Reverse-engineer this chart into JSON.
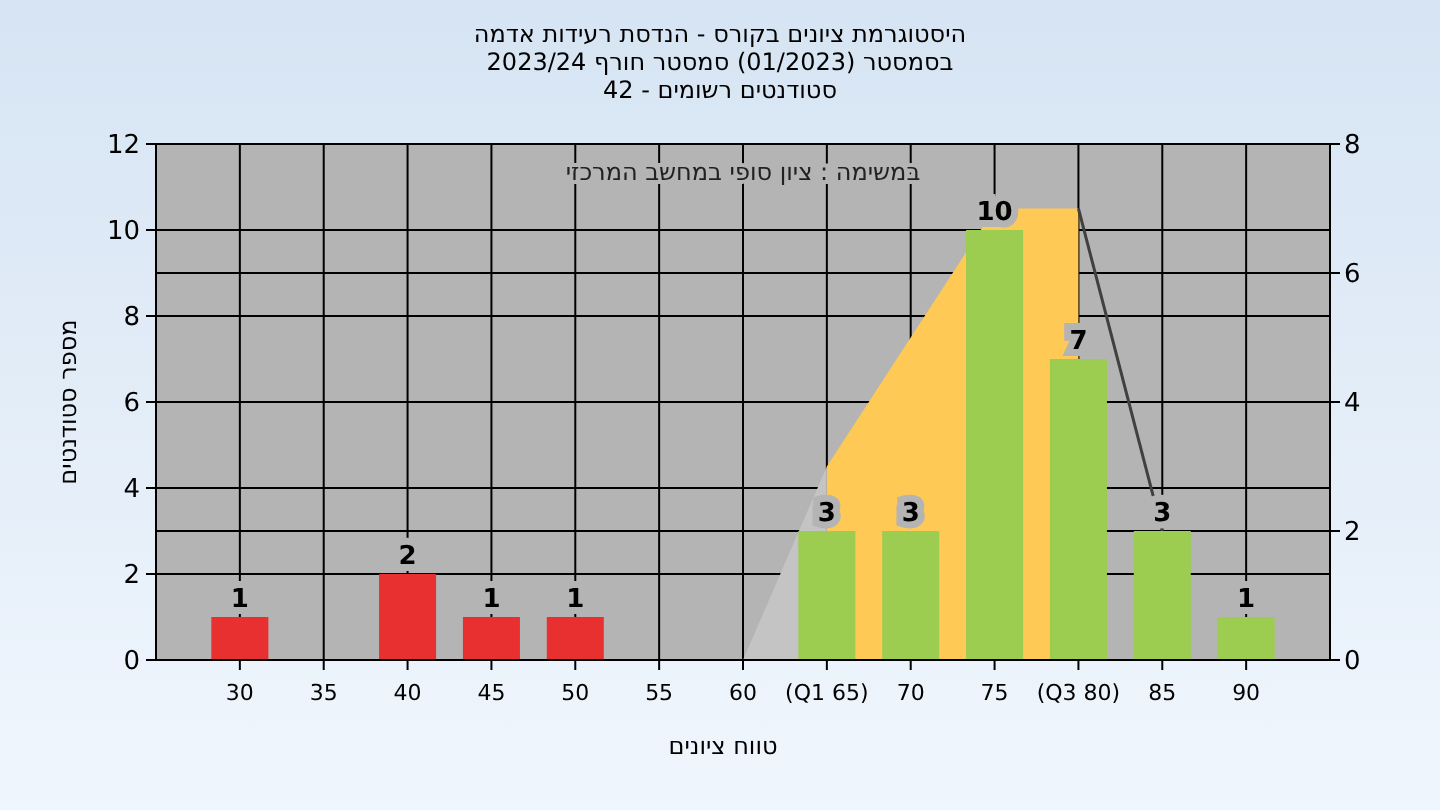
{
  "chart_data": {
    "type": "bar",
    "title": "היסטוגרמת ציונים בקורס - הנדסת רעידות אדמה",
    "subtitle": "בסמסטר  (01/2023)  סמסטר חורף 2023/24\nסטודנטים רשומים - 42",
    "xlabel": "טווח ציונים",
    "ylabel": "מספר סטודנטים",
    "annotations": [
      "במשימה : ציון סופי במחשב המרכזי"
    ],
    "x": [
      30,
      35,
      40,
      45,
      50,
      55,
      60,
      65,
      70,
      75,
      80,
      85,
      90
    ],
    "series": [
      {
        "values": [
          1,
          0,
          2,
          1,
          1,
          0,
          0,
          3,
          3,
          10,
          7,
          3,
          1
        ],
        "colors": [
          "#e83030",
          "#e83030",
          "#e83030",
          "#e83030",
          "#e83030",
          "#e83030",
          "#e83030",
          "#9ccc50",
          "#9ccc50",
          "#9ccc50",
          "#9ccc50",
          "#9ccc50",
          "#9ccc50"
        ],
        "value_labels": [
          "1",
          null,
          "2",
          "1",
          "1",
          null,
          null,
          "3",
          "3",
          "10",
          "7",
          "3",
          "1"
        ]
      },
      {
        "type": "area",
        "axis": "y2",
        "x": [
          60,
          65
        ],
        "values": [
          0,
          3
        ],
        "color": "#c4c4c4"
      },
      {
        "type": "area",
        "axis": "y2",
        "x": [
          65,
          75,
          80
        ],
        "values": [
          3,
          7,
          7
        ],
        "color": "#ffc955"
      },
      {
        "type": "line",
        "axis": "y2",
        "x": [
          80,
          85
        ],
        "values": [
          7,
          2
        ],
        "color": "#404040"
      }
    ],
    "xlim": [
      25,
      95
    ],
    "xticks": [
      30,
      35,
      40,
      45,
      50,
      55,
      60,
      {
        "value": 65,
        "label": "(Q1 65)"
      },
      70,
      75,
      {
        "value": 80,
        "label": "(Q3 80)"
      },
      85,
      90
    ],
    "ylim": [
      0,
      12
    ],
    "yticks": [
      0,
      2,
      4,
      6,
      8,
      10,
      12
    ],
    "y2lim": [
      0,
      8
    ],
    "y2ticks": [
      0,
      2,
      4,
      6,
      8
    ],
    "grid": true
  }
}
